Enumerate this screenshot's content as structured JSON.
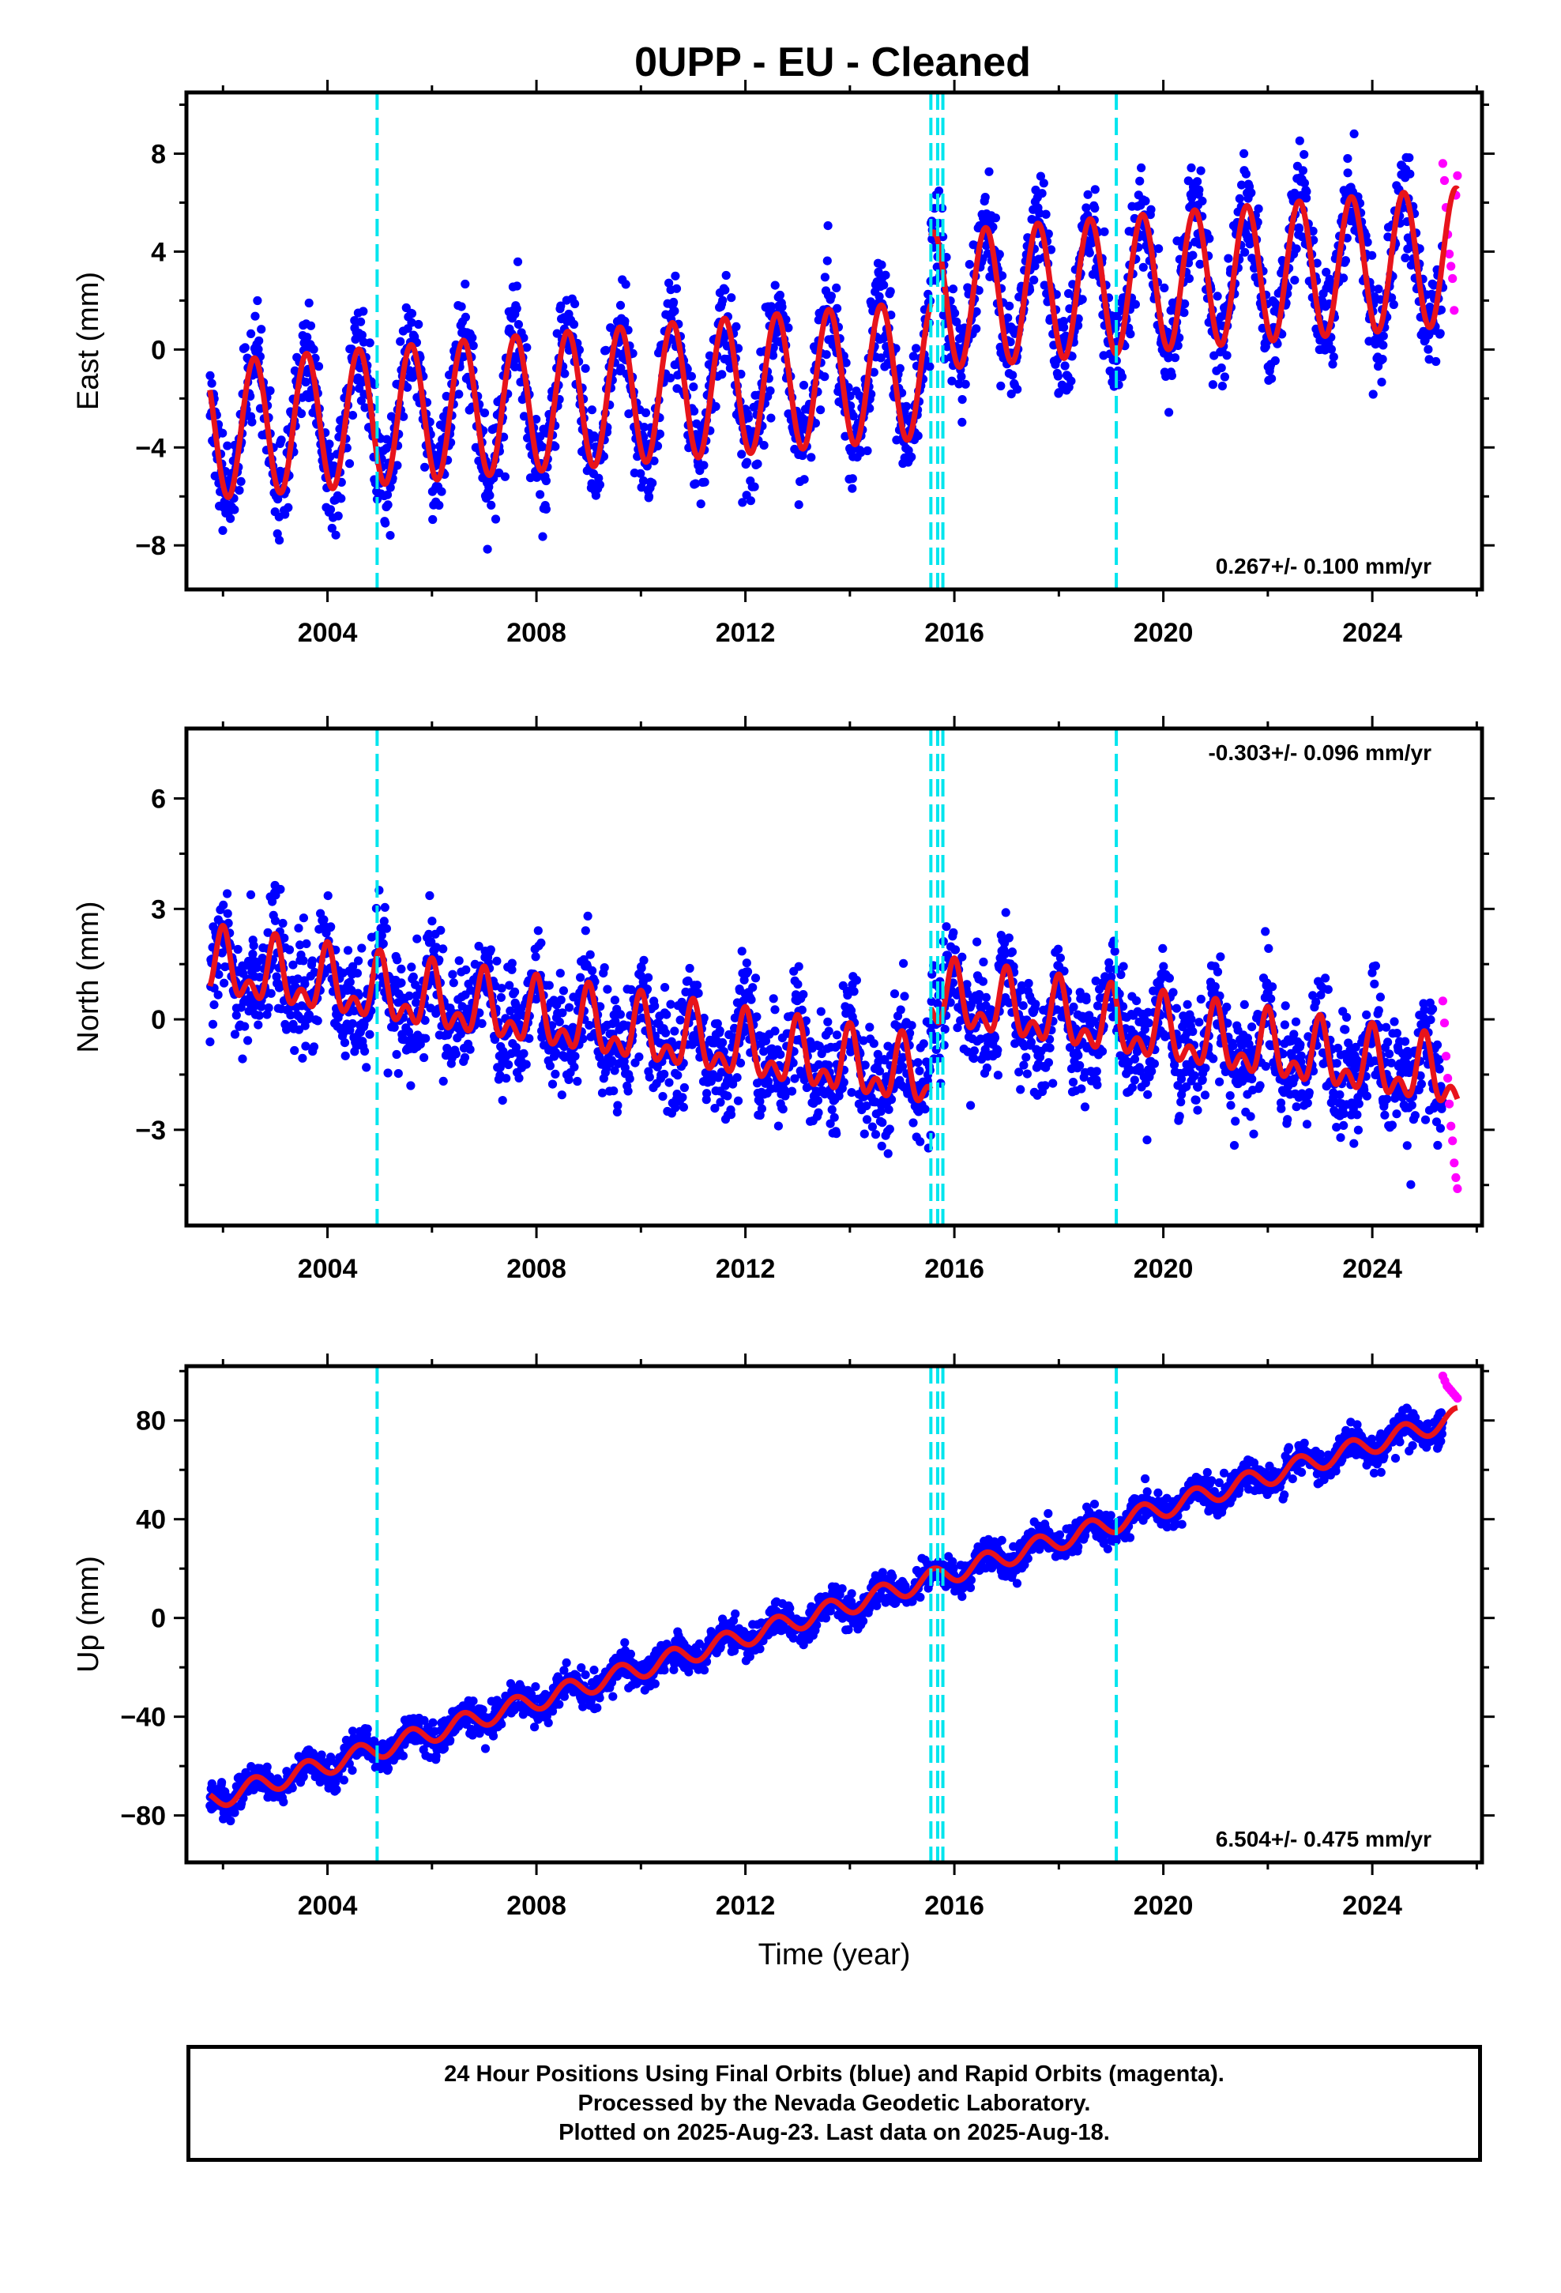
{
  "chart_data": {
    "title": "0UPP  - EU - Cleaned",
    "type": "scatter",
    "xlabel": "Time (year)",
    "xlim": [
      2001.3,
      2026.1
    ],
    "x_ticks": [
      2004,
      2008,
      2012,
      2016,
      2020,
      2024
    ],
    "x_minor_ticks": [
      2002,
      2006,
      2010,
      2014,
      2018,
      2022,
      2026
    ],
    "data_start": 2001.75,
    "rapid_start": 2025.35,
    "data_end": 2025.63,
    "breaks": [
      2004.95,
      2015.55,
      2015.68,
      2015.78,
      2019.1
    ],
    "colors": {
      "final": "#0000ff",
      "rapid": "#ff00ff",
      "model": "#e8141b",
      "break": "#00e5ee"
    },
    "panels": [
      {
        "ylabel": "East (mm)",
        "ylim": [
          -9.8,
          10.5
        ],
        "y_ticks": [
          -8,
          -4,
          0,
          4,
          8
        ],
        "y_minor_ticks": [
          -6,
          -2,
          2,
          6,
          10
        ],
        "rate_text": "0.267+/- 0.100 mm/yr",
        "rate_position": "bottom-right",
        "model": {
          "offset_2001_75": -3.3,
          "trend_per_yr": 0.18,
          "segment_offsets": [
            {
              "after": 2015.55,
              "jump": 2.8
            }
          ],
          "annual_amplitude": 2.8,
          "annual_peak": 0.6,
          "noise_sd": 1.4
        },
        "rapid_values": [
          7.6,
          6.9,
          5.8,
          4.7,
          3.9,
          3.4,
          2.9,
          1.6,
          6.3,
          7.1
        ]
      },
      {
        "ylabel": "North (mm)",
        "ylim": [
          -5.6,
          7.9
        ],
        "y_ticks": [
          -3,
          0,
          3,
          6
        ],
        "y_minor_ticks": [
          -4.5,
          -1.5,
          1.5,
          4.5
        ],
        "rate_text": "-0.303+/- 0.096 mm/yr",
        "rate_position": "top-right",
        "model": {
          "offset_2001_75": 1.4,
          "trend_per_yr": -0.22,
          "segment_offsets": [
            {
              "after": 2015.55,
              "jump": 2.2
            }
          ],
          "annual_amplitude": 0.7,
          "annual_peak": 0.0,
          "semiannual_amplitude": 0.5,
          "semiannual_peak": 0.0,
          "noise_sd": 1.0
        },
        "rapid_values": [
          0.5,
          -0.1,
          -1.0,
          -1.6,
          -2.3,
          -2.9,
          -3.3,
          -3.9,
          -4.3,
          -4.6
        ]
      },
      {
        "ylabel": "Up (mm)",
        "ylim": [
          -99,
          102
        ],
        "y_ticks": [
          -80,
          -40,
          0,
          40,
          80
        ],
        "y_minor_ticks": [
          -60,
          -20,
          20,
          60,
          100
        ],
        "rate_text": "6.504+/- 0.475 mm/yr",
        "rate_position": "bottom-right",
        "model": {
          "offset_2001_75": -74,
          "trend_per_yr": 6.5,
          "segment_offsets": [],
          "annual_amplitude": 4.0,
          "annual_peak": 0.6,
          "noise_sd": 4.2
        },
        "rapid_values": [
          98,
          96,
          94,
          93,
          92,
          91,
          90,
          89
        ]
      }
    ]
  },
  "footer": {
    "line1": "24 Hour Positions Using Final Orbits (blue) and Rapid Orbits (magenta).",
    "line2": "Processed by the Nevada Geodetic Laboratory.",
    "line3": "Plotted on 2025-Aug-23. Last data on 2025-Aug-18."
  }
}
